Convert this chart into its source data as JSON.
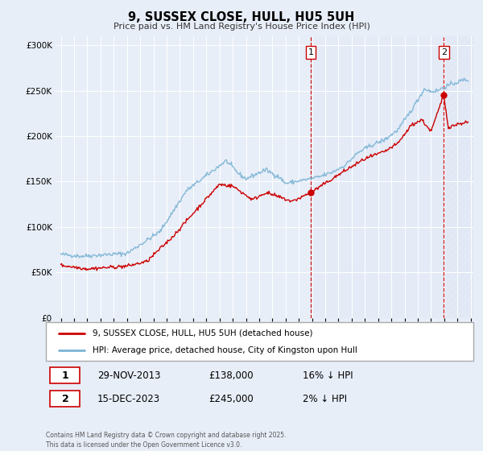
{
  "title": "9, SUSSEX CLOSE, HULL, HU5 5UH",
  "subtitle": "Price paid vs. HM Land Registry's House Price Index (HPI)",
  "background_color": "#e8eef8",
  "plot_bg_color": "#e8eef8",
  "hpi_color": "#7ab3d4",
  "price_color": "#cc0000",
  "annotation1_date": 2013.91,
  "annotation1_price": 138000,
  "annotation1_label": "1",
  "annotation2_date": 2023.96,
  "annotation2_price": 245000,
  "annotation2_label": "2",
  "ylim": [
    0,
    310000
  ],
  "xlim_start": 1994.6,
  "xlim_end": 2026.2,
  "footer": "Contains HM Land Registry data © Crown copyright and database right 2025.\nThis data is licensed under the Open Government Licence v3.0.",
  "legend1": "9, SUSSEX CLOSE, HULL, HU5 5UH (detached house)",
  "legend2": "HPI: Average price, detached house, City of Kingston upon Hull",
  "table_row1": [
    "1",
    "29-NOV-2013",
    "£138,000",
    "16% ↓ HPI"
  ],
  "table_row2": [
    "2",
    "15-DEC-2023",
    "£245,000",
    "2% ↓ HPI"
  ]
}
